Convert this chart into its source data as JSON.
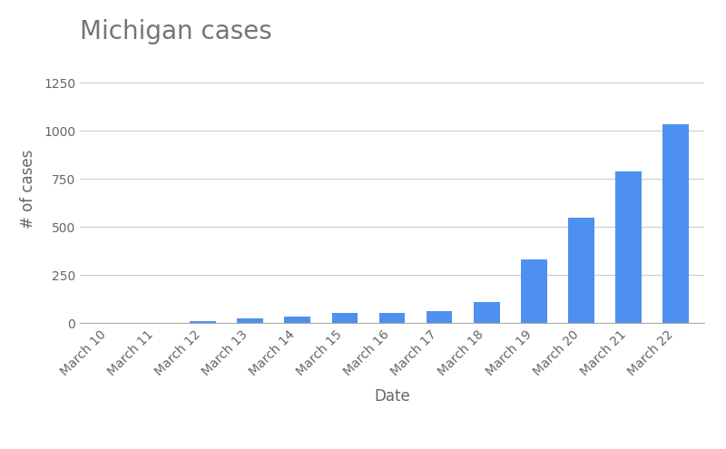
{
  "title": "Michigan cases",
  "categories": [
    "March 10",
    "March 11",
    "March 12",
    "March 13",
    "March 14",
    "March 15",
    "March 16",
    "March 17",
    "March 18",
    "March 19",
    "March 20",
    "March 21",
    "March 22"
  ],
  "values": [
    2,
    0,
    12,
    25,
    33,
    55,
    53,
    65,
    110,
    330,
    550,
    787,
    1035
  ],
  "bar_color": "#4d90f0",
  "xlabel": "Date",
  "ylabel": "# of cases",
  "ylim": [
    0,
    1400
  ],
  "yticks": [
    0,
    250,
    500,
    750,
    1000,
    1250
  ],
  "title_fontsize": 20,
  "title_color": "#757575",
  "axis_label_fontsize": 12,
  "tick_label_fontsize": 10,
  "tick_label_color": "#666666",
  "background_color": "#ffffff",
  "grid_color": "#cccccc",
  "bar_width": 0.55
}
